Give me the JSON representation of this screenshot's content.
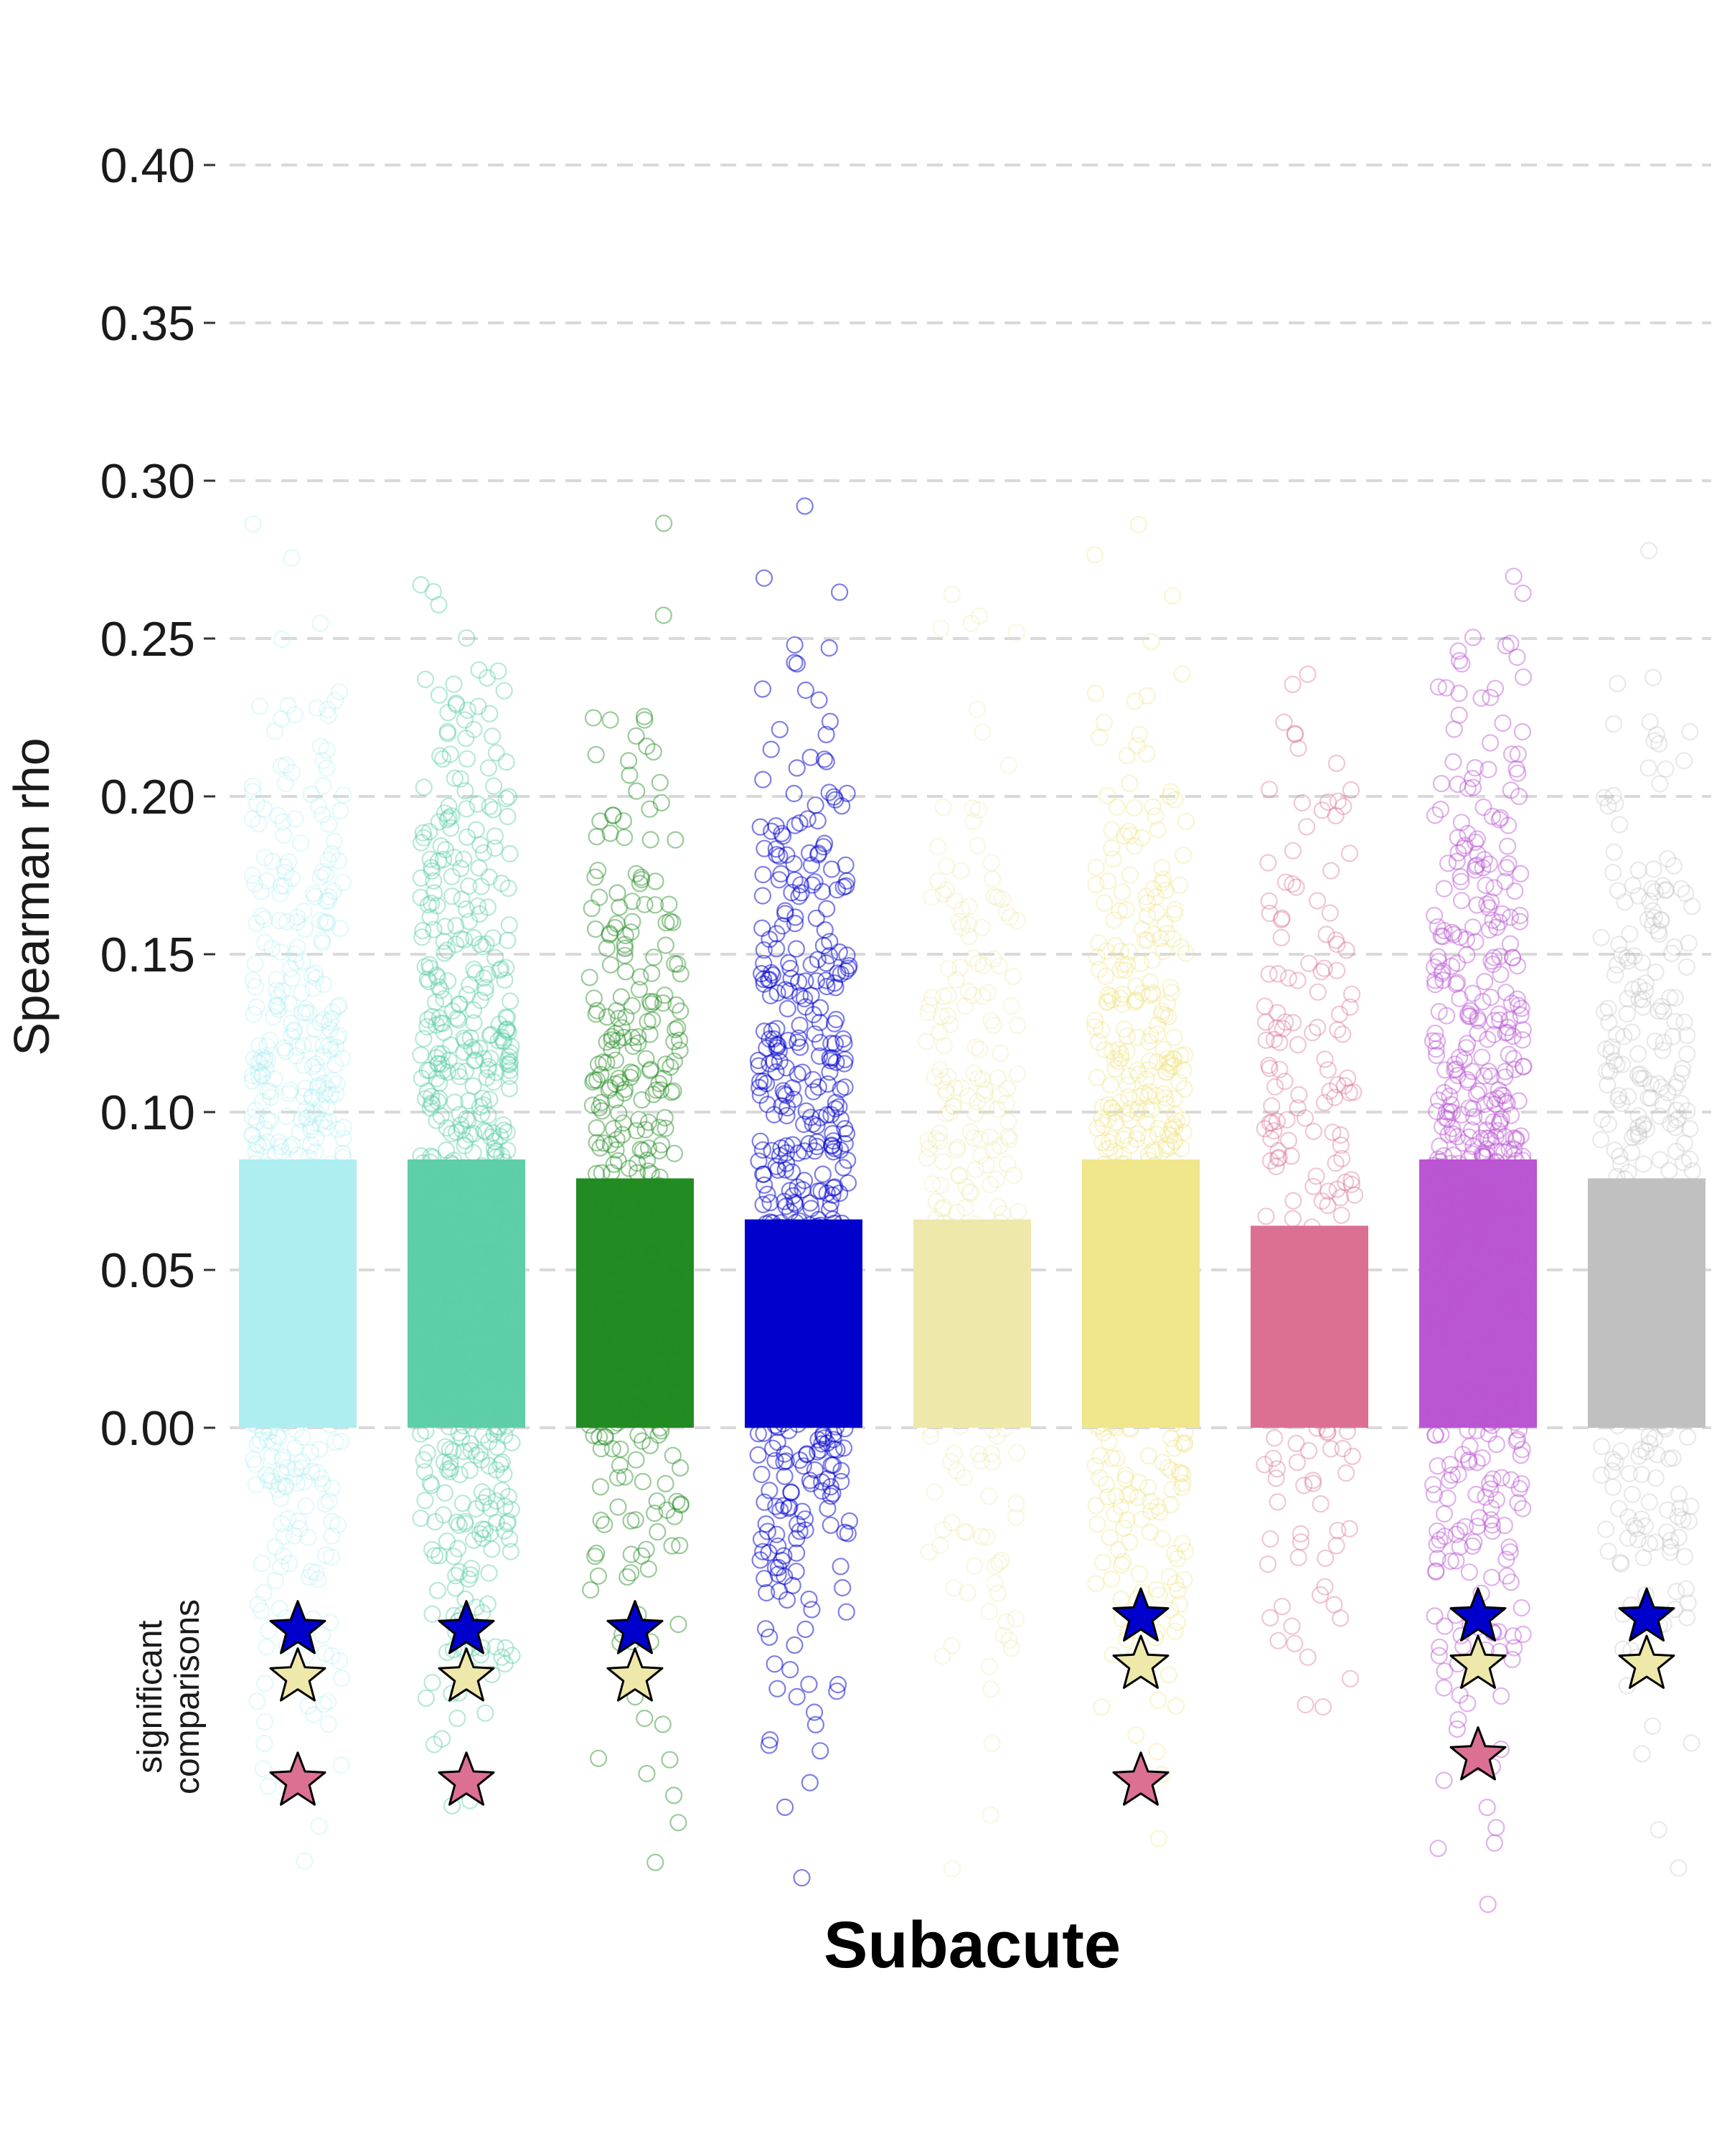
{
  "chart_data": {
    "type": "bar",
    "title": "Subacute",
    "xlabel": "",
    "ylabel": "Spearman rho",
    "ylim": [
      -0.16,
      0.41
    ],
    "yticks": [
      0.0,
      0.05,
      0.1,
      0.15,
      0.2,
      0.25,
      0.3,
      0.35,
      0.4
    ],
    "ytick_labels": [
      "0.00",
      "0.05",
      "0.10",
      "0.15",
      "0.20",
      "0.25",
      "0.30",
      "0.35",
      "0.40"
    ],
    "grid": "horizontal dashed",
    "legend": "none",
    "significance_label": "significant\ncomparisons",
    "categories": [
      "",
      "",
      "",
      "",
      "",
      "",
      "",
      "",
      ""
    ],
    "values": [
      0.085,
      0.085,
      0.079,
      0.066,
      0.066,
      0.085,
      0.064,
      0.085,
      0.079
    ],
    "colors": [
      "#aeeef0",
      "#5ecfa8",
      "#228b22",
      "#0000cd",
      "#eee8aa",
      "#f0e68c",
      "#db7093",
      "#ba55d3",
      "#c0c0c0"
    ],
    "point_alpha": [
      0.35,
      0.45,
      0.45,
      0.5,
      0.35,
      0.4,
      0.4,
      0.45,
      0.35
    ],
    "point_counts": [
      520,
      600,
      360,
      520,
      260,
      480,
      220,
      580,
      360
    ],
    "point_range": [
      -0.185,
      0.365
    ],
    "significant_comparisons": [
      {
        "group": 0,
        "markers": [
          {
            "color": "#0000cd",
            "y": -0.064
          },
          {
            "color": "#eee8aa",
            "y": -0.079
          },
          {
            "color": "#db7093",
            "y": -0.112
          }
        ]
      },
      {
        "group": 1,
        "markers": [
          {
            "color": "#0000cd",
            "y": -0.064
          },
          {
            "color": "#eee8aa",
            "y": -0.079
          },
          {
            "color": "#db7093",
            "y": -0.112
          }
        ]
      },
      {
        "group": 2,
        "markers": [
          {
            "color": "#0000cd",
            "y": -0.064
          },
          {
            "color": "#eee8aa",
            "y": -0.079
          }
        ]
      },
      {
        "group": 5,
        "markers": [
          {
            "color": "#0000cd",
            "y": -0.06
          },
          {
            "color": "#eee8aa",
            "y": -0.075
          },
          {
            "color": "#db7093",
            "y": -0.112
          }
        ]
      },
      {
        "group": 7,
        "markers": [
          {
            "color": "#0000cd",
            "y": -0.06
          },
          {
            "color": "#eee8aa",
            "y": -0.075
          },
          {
            "color": "#db7093",
            "y": -0.104
          }
        ]
      },
      {
        "group": 8,
        "markers": [
          {
            "color": "#0000cd",
            "y": -0.06
          },
          {
            "color": "#eee8aa",
            "y": -0.075
          }
        ]
      }
    ]
  }
}
